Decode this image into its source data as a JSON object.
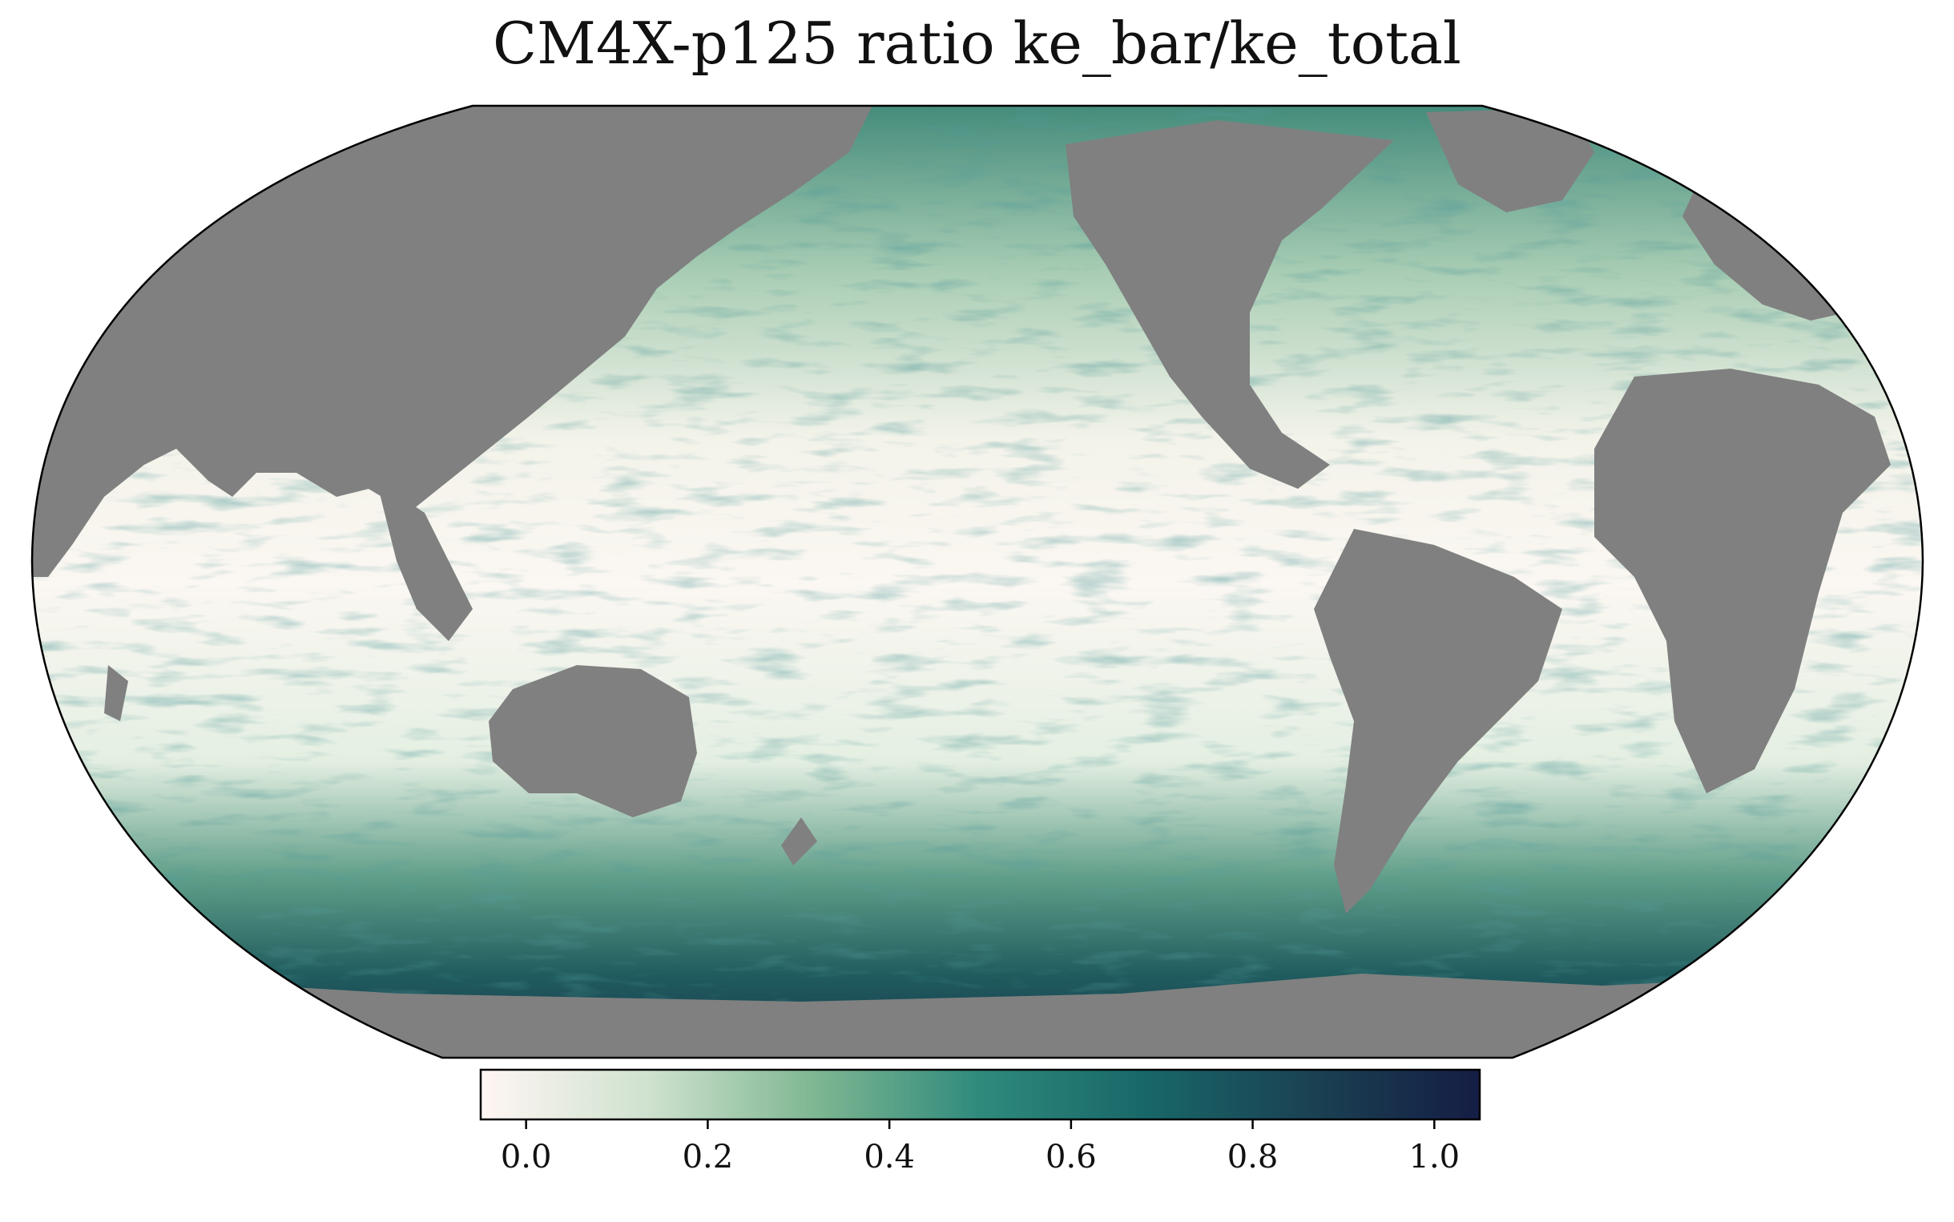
{
  "title": "CM4X-p125 ratio ke_bar/ke_total",
  "map": {
    "projection": "Robinson",
    "central_longitude": 180,
    "land_color": "#808080",
    "outline_color": "#000000",
    "field": "ratio ke_bar/ke_total"
  },
  "colorbar": {
    "orientation": "horizontal",
    "colormap": "tempo",
    "vmin": -0.05,
    "vmax": 1.05,
    "stops": [
      "#fff6f4",
      "#cfe2cf",
      "#7fb792",
      "#2f8a7c",
      "#186768",
      "#1a4152",
      "#151d44"
    ],
    "ticks": [
      "0.0",
      "0.2",
      "0.4",
      "0.6",
      "0.8",
      "1.0"
    ],
    "tick_values": [
      0.0,
      0.2,
      0.4,
      0.6,
      0.8,
      1.0
    ]
  }
}
